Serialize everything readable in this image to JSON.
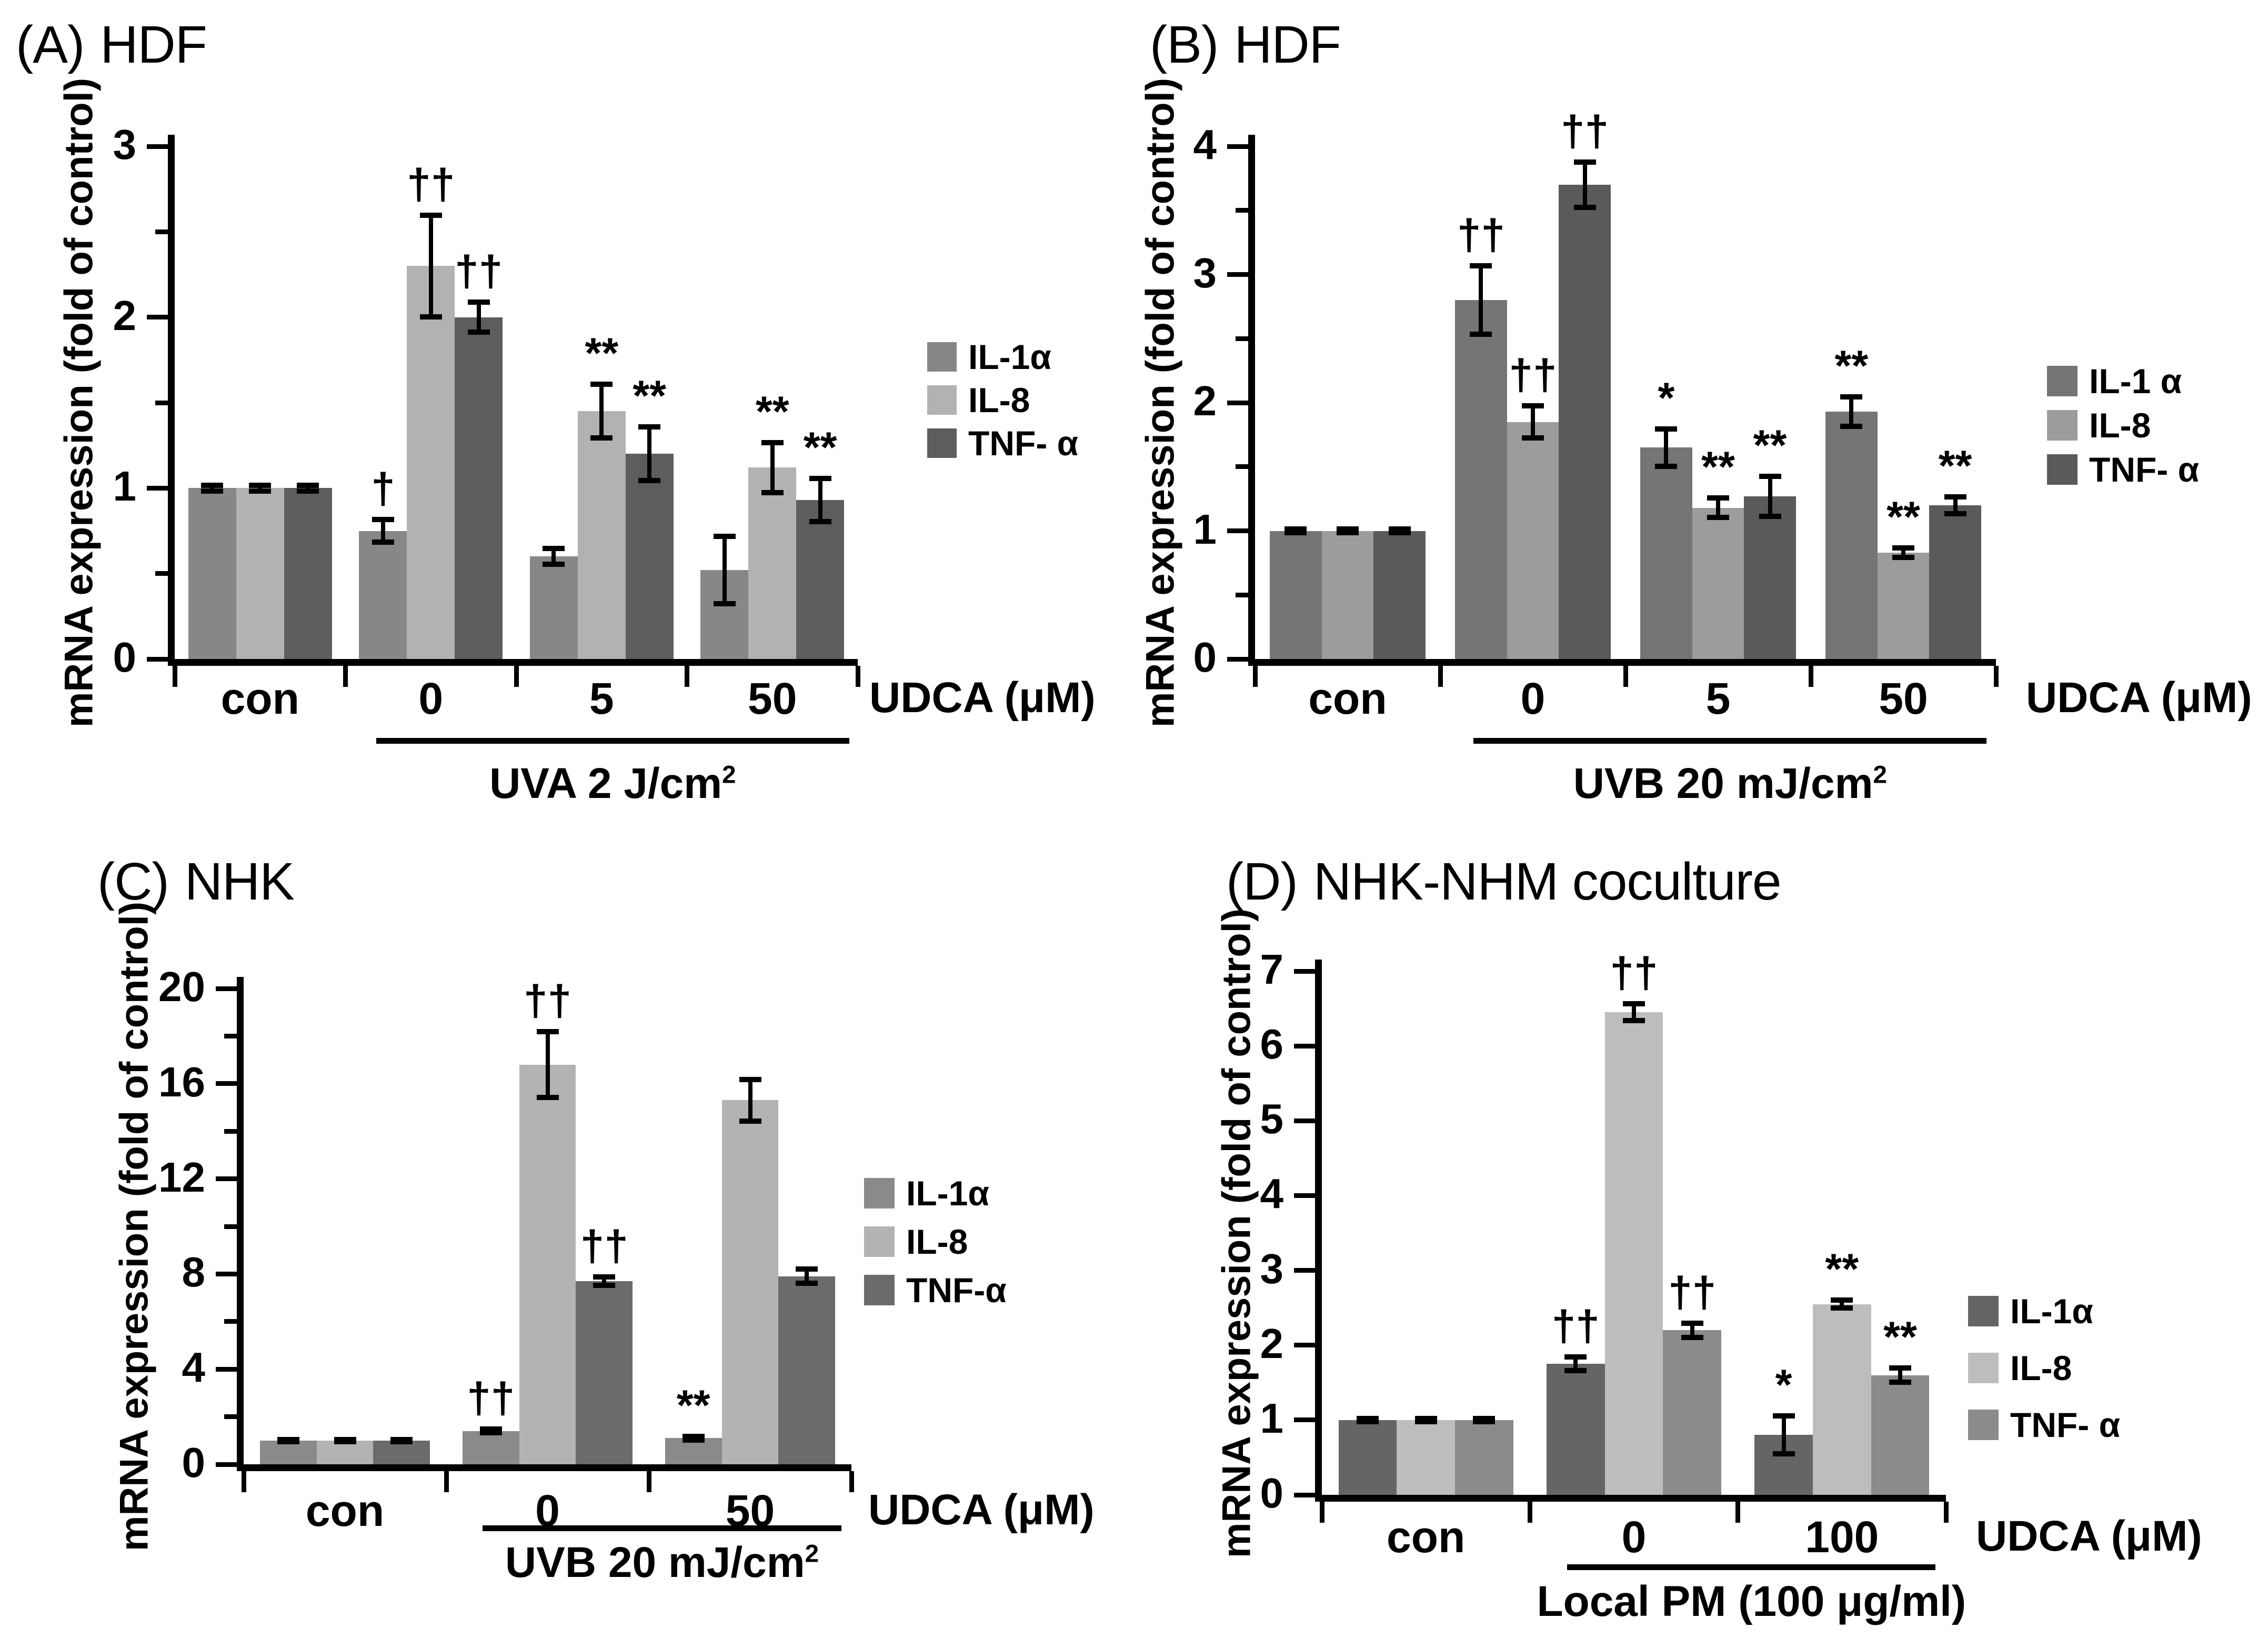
{
  "figure_type": "four-panel grouped bar chart figure",
  "chart_data": [
    {
      "type": "bar",
      "panel_label": "(A)",
      "title": "HDF",
      "ylabel": "mRNA expression (fold of control)",
      "ylim": [
        0,
        3
      ],
      "yticks": [
        0,
        1,
        2,
        3
      ],
      "minor_tick_step": 0.5,
      "categories": [
        "con",
        "0",
        "5",
        "50"
      ],
      "series": [
        {
          "name": "IL-1α",
          "color": "#878787",
          "values": [
            1.0,
            0.75,
            0.6,
            0.52
          ],
          "errors": [
            0.02,
            0.07,
            0.05,
            0.2
          ],
          "sig": [
            "",
            "†",
            "",
            ""
          ]
        },
        {
          "name": "IL-8",
          "color": "#b2b2b2",
          "values": [
            1.0,
            2.3,
            1.45,
            1.12
          ],
          "errors": [
            0.02,
            0.3,
            0.16,
            0.15
          ],
          "sig": [
            "",
            "††",
            "**",
            "**"
          ]
        },
        {
          "name": "TNF- α",
          "color": "#5d5d5d",
          "values": [
            1.0,
            2.0,
            1.2,
            0.93
          ],
          "errors": [
            0.02,
            0.09,
            0.16,
            0.13
          ],
          "sig": [
            "",
            "††",
            "**",
            "**"
          ]
        }
      ],
      "x_suffix": "UDCA (μM)",
      "treatment": {
        "label": "UVA 2 J/cm",
        "sup": "2",
        "applies_to_categories": [
          "0",
          "5",
          "50"
        ]
      },
      "legend_position": "right",
      "grid": "off"
    },
    {
      "type": "bar",
      "panel_label": "(B)",
      "title": "HDF",
      "ylabel": "mRNA expression (fold of control)",
      "ylim": [
        0,
        4
      ],
      "yticks": [
        0,
        1,
        2,
        3,
        4
      ],
      "minor_tick_step": 0.5,
      "categories": [
        "con",
        "0",
        "5",
        "50"
      ],
      "series": [
        {
          "name": "IL-1 α",
          "color": "#757575",
          "values": [
            1.0,
            2.8,
            1.65,
            1.93
          ],
          "errors": [
            0.02,
            0.27,
            0.15,
            0.12
          ],
          "sig": [
            "",
            "††",
            "*",
            "**"
          ]
        },
        {
          "name": "IL-8",
          "color": "#9c9c9c",
          "values": [
            1.0,
            1.85,
            1.18,
            0.83
          ],
          "errors": [
            0.02,
            0.13,
            0.08,
            0.04
          ],
          "sig": [
            "",
            "††",
            "**",
            "**"
          ]
        },
        {
          "name": "TNF- α",
          "color": "#5a5a5a",
          "values": [
            1.0,
            3.7,
            1.27,
            1.2
          ],
          "errors": [
            0.02,
            0.18,
            0.16,
            0.07
          ],
          "sig": [
            "",
            "††",
            "**",
            "**"
          ]
        }
      ],
      "x_suffix": "UDCA (μM)",
      "treatment": {
        "label": "UVB 20 mJ/cm",
        "sup": "2",
        "applies_to_categories": [
          "0",
          "5",
          "50"
        ]
      },
      "legend_position": "right",
      "grid": "off"
    },
    {
      "type": "bar",
      "panel_label": "(C)",
      "title": "NHK",
      "ylabel": "mRNA expression (fold of control)",
      "ylim": [
        0,
        20
      ],
      "yticks": [
        0,
        4,
        8,
        12,
        16,
        20
      ],
      "minor_tick_step": 2,
      "categories": [
        "con",
        "0",
        "50"
      ],
      "series": [
        {
          "name": "IL-1α",
          "color": "#8a8a8a",
          "values": [
            1.0,
            1.4,
            1.1
          ],
          "errors": [
            0.06,
            0.1,
            0.1
          ],
          "sig": [
            "",
            "††",
            "**"
          ]
        },
        {
          "name": "IL-8",
          "color": "#b3b3b3",
          "values": [
            1.0,
            16.8,
            15.3
          ],
          "errors": [
            0.06,
            1.4,
            0.9
          ],
          "sig": [
            "",
            "††",
            ""
          ]
        },
        {
          "name": "TNF-α",
          "color": "#6b6b6b",
          "values": [
            1.0,
            7.7,
            7.9
          ],
          "errors": [
            0.06,
            0.2,
            0.32
          ],
          "sig": [
            "",
            "††",
            ""
          ]
        }
      ],
      "x_suffix": "UDCA (μM)",
      "treatment": {
        "label": "UVB 20 mJ/cm",
        "sup": "2",
        "applies_to_categories": [
          "0",
          "50"
        ]
      },
      "legend_position": "right",
      "grid": "off"
    },
    {
      "type": "bar",
      "panel_label": "(D)",
      "title": "NHK-NHM coculture",
      "ylabel": "mRNA expression (fold of control)",
      "ylim": [
        0,
        7
      ],
      "yticks": [
        0,
        1,
        2,
        3,
        4,
        5,
        6,
        7
      ],
      "minor_tick_step": null,
      "categories": [
        "con",
        "0",
        "100"
      ],
      "series": [
        {
          "name": "IL-1α",
          "color": "#656565",
          "values": [
            1.0,
            1.75,
            0.8
          ],
          "errors": [
            0.03,
            0.1,
            0.26
          ],
          "sig": [
            "",
            "††",
            "*"
          ]
        },
        {
          "name": "IL-8",
          "color": "#bdbdbd",
          "values": [
            1.0,
            6.45,
            2.55
          ],
          "errors": [
            0.03,
            0.12,
            0.06
          ],
          "sig": [
            "",
            "††",
            "**"
          ]
        },
        {
          "name": "TNF- α",
          "color": "#8b8b8b",
          "values": [
            1.0,
            2.2,
            1.6
          ],
          "errors": [
            0.03,
            0.1,
            0.1
          ],
          "sig": [
            "",
            "††",
            "**"
          ]
        }
      ],
      "x_suffix": "UDCA (μM)",
      "treatment": {
        "label": "Local PM (100 μg/ml)",
        "sup": "",
        "applies_to_categories": [
          "0",
          "100"
        ]
      },
      "legend_position": "right",
      "grid": "off"
    }
  ]
}
